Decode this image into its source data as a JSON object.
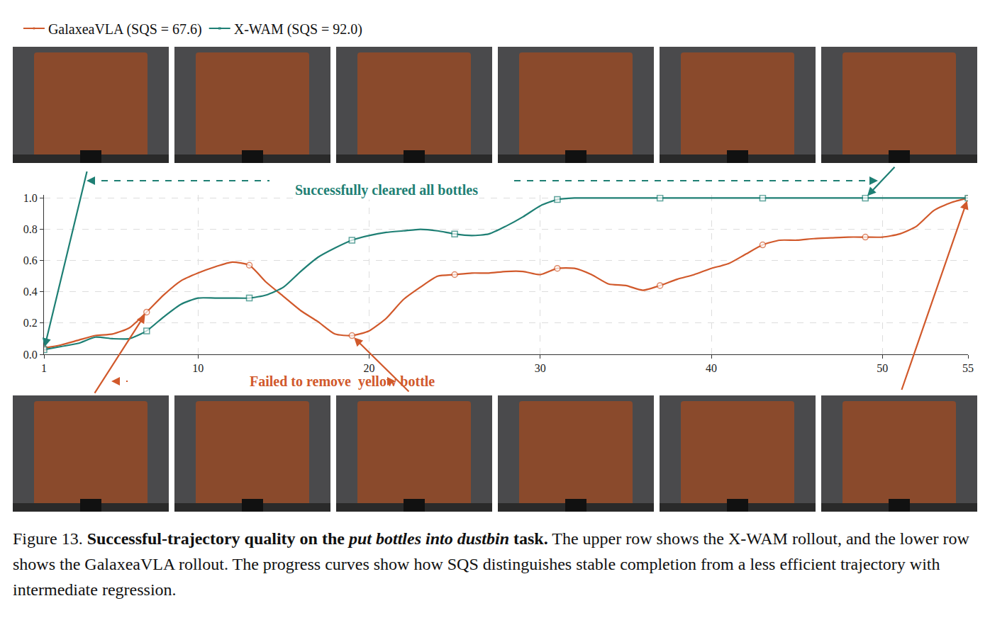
{
  "chart_data": {
    "type": "line",
    "x": [
      1,
      2,
      3,
      4,
      5,
      6,
      7,
      8,
      9,
      10,
      11,
      12,
      13,
      14,
      15,
      16,
      17,
      18,
      19,
      20,
      21,
      22,
      23,
      24,
      25,
      26,
      27,
      28,
      29,
      30,
      31,
      32,
      33,
      34,
      35,
      36,
      37,
      38,
      39,
      40,
      41,
      42,
      43,
      44,
      45,
      46,
      47,
      48,
      49,
      50,
      51,
      52,
      53,
      54,
      55
    ],
    "series": [
      {
        "name": "GalaxeaVLA (SQS = 67.6)",
        "color": "#d1592b",
        "marker": "circle",
        "values": [
          0.04,
          0.06,
          0.09,
          0.12,
          0.13,
          0.17,
          0.27,
          0.38,
          0.47,
          0.52,
          0.56,
          0.59,
          0.57,
          0.46,
          0.37,
          0.28,
          0.21,
          0.13,
          0.12,
          0.15,
          0.23,
          0.35,
          0.43,
          0.5,
          0.51,
          0.52,
          0.52,
          0.53,
          0.53,
          0.51,
          0.55,
          0.55,
          0.51,
          0.45,
          0.44,
          0.41,
          0.44,
          0.48,
          0.51,
          0.55,
          0.58,
          0.64,
          0.7,
          0.73,
          0.73,
          0.74,
          0.745,
          0.75,
          0.75,
          0.75,
          0.77,
          0.82,
          0.92,
          0.97,
          1.0
        ]
      },
      {
        "name": "X-WAM (SQS = 92.0)",
        "color": "#1e7f74",
        "marker": "square",
        "values": [
          0.03,
          0.05,
          0.07,
          0.11,
          0.1,
          0.1,
          0.15,
          0.24,
          0.32,
          0.36,
          0.36,
          0.36,
          0.36,
          0.38,
          0.43,
          0.53,
          0.62,
          0.68,
          0.73,
          0.76,
          0.78,
          0.79,
          0.8,
          0.79,
          0.77,
          0.76,
          0.77,
          0.82,
          0.88,
          0.95,
          0.99,
          1.0,
          1.0,
          1.0,
          1.0,
          1.0,
          1.0,
          1.0,
          1.0,
          1.0,
          1.0,
          1.0,
          1.0,
          1.0,
          1.0,
          1.0,
          1.0,
          1.0,
          1.0,
          1.0,
          1.0,
          1.0,
          1.0,
          1.0,
          1.0
        ]
      }
    ],
    "xlim": [
      1,
      55
    ],
    "xticks": [
      1,
      10,
      20,
      30,
      40,
      50,
      55
    ],
    "ylim": [
      0,
      1.02
    ],
    "yticks": [
      {
        "value": 0,
        "label": "0.0"
      },
      {
        "value": 0.2,
        "label": "0.2"
      },
      {
        "value": 0.4,
        "label": "0.4"
      },
      {
        "value": 0.6,
        "label": "0.6"
      },
      {
        "value": 0.8,
        "label": "0.8"
      },
      {
        "value": 1.0,
        "label": "1.0"
      }
    ],
    "grid": true,
    "legend": "top left",
    "annotations": [
      {
        "text": "Successfully cleared all bottles",
        "color": "#1e7f74"
      },
      {
        "text": "Failed to remove  yellow bottle",
        "color": "#d1592b"
      }
    ]
  },
  "caption": {
    "label": "Figure 13.",
    "bold_start": "Successful-trajectory quality on the",
    "italic": "put bottles into dustbin",
    "bold_end": "task.",
    "text": "The upper row shows the X-WAM rollout, and the lower row shows the GalaxeaVLA rollout. The progress curves show how SQS distinguishes stable completion from a less efficient trajectory with intermediate regression."
  }
}
